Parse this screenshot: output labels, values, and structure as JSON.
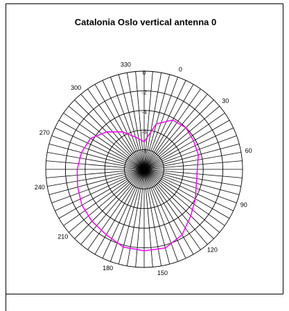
{
  "chart_data": {
    "type": "polar",
    "title": "Catalonia Oslo vertical antenna  0",
    "thetaticks": [
      0,
      30,
      60,
      90,
      120,
      150,
      180,
      210,
      240,
      270,
      300,
      330
    ],
    "rlim": [
      -10,
      0
    ],
    "rticks": [
      0,
      -2,
      -4,
      -6,
      -8
    ],
    "series": [
      {
        "color": "#ff00ff",
        "theta": [
          0,
          15,
          30,
          45,
          60,
          75,
          90,
          105,
          120,
          135,
          150,
          165,
          180,
          195,
          210,
          225,
          240,
          255,
          270,
          285,
          300,
          315,
          330,
          345
        ],
        "values": [
          -7.2,
          -5.2,
          -4.2,
          -4.0,
          -4.2,
          -4.3,
          -4.6,
          -4.5,
          -4.0,
          -3.3,
          -2.3,
          -1.7,
          -1.7,
          -1.8,
          -2.3,
          -2.5,
          -2.7,
          -3.0,
          -3.2,
          -3.4,
          -3.7,
          -4.6,
          -5.6,
          -6.6
        ]
      }
    ]
  }
}
